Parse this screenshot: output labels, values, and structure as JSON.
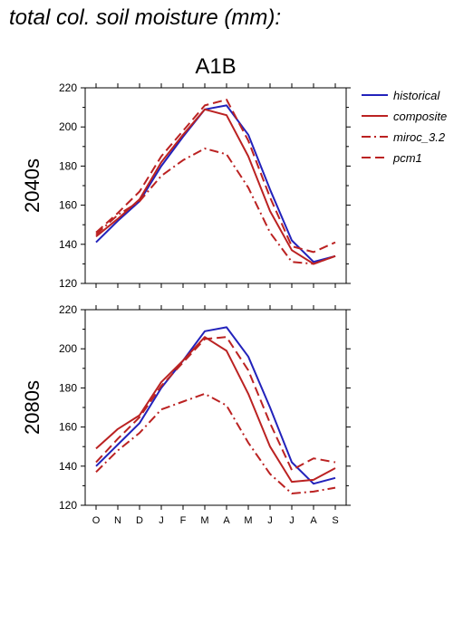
{
  "page_title": "total col. soil moisture (mm):",
  "chart_data": {
    "type": "line",
    "title": "A1B",
    "categories": [
      "O",
      "N",
      "D",
      "J",
      "F",
      "M",
      "A",
      "M",
      "J",
      "J",
      "A",
      "S"
    ],
    "ylim": [
      120,
      220
    ],
    "yticks": [
      120,
      140,
      160,
      180,
      200,
      220
    ],
    "grid": false,
    "legend_position": "top-right",
    "legend": [
      {
        "name": "historical",
        "color": "#2222bb",
        "dash": "solid"
      },
      {
        "name": "composite",
        "color": "#bb2222",
        "dash": "solid"
      },
      {
        "name": "miroc_3.2",
        "color": "#bb2222",
        "dash": "dashdot"
      },
      {
        "name": "pcm1",
        "color": "#bb2222",
        "dash": "dashed"
      }
    ],
    "panels": [
      {
        "label": "2040s",
        "series": [
          {
            "name": "historical",
            "values": [
              141,
              152,
              162,
              180,
              195,
              209,
              211,
              196,
              168,
              142,
              131,
              134
            ]
          },
          {
            "name": "composite",
            "values": [
              144,
              153,
              163,
              182,
              196,
              209,
              206,
              185,
              157,
              137,
              130,
              134
            ]
          },
          {
            "name": "miroc_3.2",
            "values": [
              145,
              155,
              162,
              175,
              183,
              189,
              186,
              169,
              146,
              131,
              130,
              134
            ]
          },
          {
            "name": "pcm1",
            "values": [
              146,
              156,
              167,
              185,
              198,
              211,
              214,
              193,
              164,
              139,
              136,
              141
            ]
          }
        ]
      },
      {
        "label": "2080s",
        "series": [
          {
            "name": "historical",
            "values": [
              140,
              151,
              162,
              180,
              194,
              209,
              211,
              196,
              170,
              142,
              131,
              134
            ]
          },
          {
            "name": "composite",
            "values": [
              149,
              159,
              166,
              183,
              194,
              206,
              199,
              177,
              150,
              132,
              133,
              139
            ]
          },
          {
            "name": "miroc_3.2",
            "values": [
              137,
              148,
              157,
              169,
              173,
              177,
              171,
              152,
              136,
              126,
              127,
              129
            ]
          },
          {
            "name": "pcm1",
            "values": [
              142,
              154,
              165,
              181,
              193,
              205,
              206,
              189,
              162,
              138,
              144,
              142
            ]
          }
        ]
      }
    ]
  }
}
